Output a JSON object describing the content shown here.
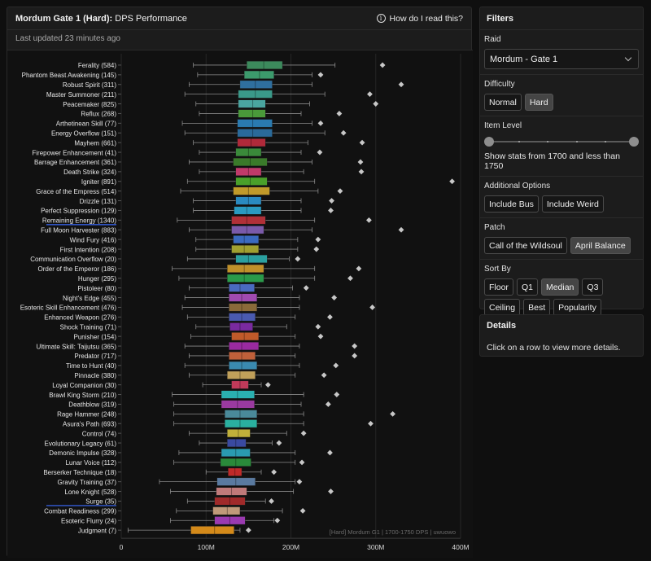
{
  "header": {
    "title_bold": "Mordum Gate 1 (Hard):",
    "title_rest": " DPS Performance",
    "help_label": "How do I read this?",
    "help_icon": "info-icon",
    "updated": "Last updated 23 minutes ago"
  },
  "filters": {
    "title": "Filters",
    "raid": {
      "label": "Raid",
      "value": "Mordum - Gate 1"
    },
    "difficulty": {
      "label": "Difficulty",
      "options": [
        {
          "label": "Normal",
          "active": false
        },
        {
          "label": "Hard",
          "active": true
        }
      ]
    },
    "item_level": {
      "label": "Item Level",
      "text": "Show stats from 1700 and less than 1750",
      "range": [
        0.0,
        1.0
      ]
    },
    "additional": {
      "label": "Additional Options",
      "options": [
        {
          "label": "Include Bus",
          "active": false
        },
        {
          "label": "Include Weird",
          "active": false
        }
      ]
    },
    "patch": {
      "label": "Patch",
      "options": [
        {
          "label": "Call of the Wildsoul",
          "active": false
        },
        {
          "label": "April Balance",
          "active": true
        }
      ]
    },
    "sort_by": {
      "label": "Sort By",
      "options": [
        {
          "label": "Floor",
          "active": false
        },
        {
          "label": "Q1",
          "active": false
        },
        {
          "label": "Median",
          "active": true
        },
        {
          "label": "Q3",
          "active": false
        },
        {
          "label": "Ceiling",
          "active": false
        },
        {
          "label": "Best",
          "active": false
        },
        {
          "label": "Popularity",
          "active": false
        }
      ]
    }
  },
  "details": {
    "title": "Details",
    "body": "Click on a row to view more details."
  },
  "chart_data": {
    "type": "boxplot",
    "title": "Mordum Gate 1 (Hard): DPS Performance",
    "watermark": "[Hard] Mordum G1 | 1700-1750 DPS | uwuowo",
    "xlim": [
      0,
      400
    ],
    "x_unit_scale": "M",
    "x_ticks": [
      "0",
      "100M",
      "200M",
      "300M",
      "400M"
    ],
    "x_tick_values": [
      0,
      100,
      200,
      300,
      400
    ],
    "grid": true,
    "underlined_rows": [
      "Remaining Energy (1340)",
      "Surge (35)"
    ],
    "rows": [
      {
        "label": "Ferality (584)",
        "min": 85,
        "q1": 148,
        "median": 168,
        "q3": 190,
        "max": 252,
        "outlier": 308,
        "color": "#3c8a5c"
      },
      {
        "label": "Phantom Beast Awakening (145)",
        "min": 90,
        "q1": 145,
        "median": 163,
        "q3": 180,
        "max": 225,
        "outlier": 235,
        "color": "#3c9a6c"
      },
      {
        "label": "Robust Spirit (311)",
        "min": 80,
        "q1": 140,
        "median": 158,
        "q3": 178,
        "max": 225,
        "outlier": 330,
        "color": "#2f6f9f"
      },
      {
        "label": "Master Summoner (211)",
        "min": 75,
        "q1": 138,
        "median": 158,
        "q3": 178,
        "max": 240,
        "outlier": 293,
        "color": "#3a9a8a"
      },
      {
        "label": "Peacemaker (825)",
        "min": 88,
        "q1": 138,
        "median": 155,
        "q3": 170,
        "max": 222,
        "outlier": 300,
        "color": "#4aa5a0"
      },
      {
        "label": "Reflux (268)",
        "min": 92,
        "q1": 138,
        "median": 155,
        "q3": 170,
        "max": 212,
        "outlier": 257,
        "color": "#4a9a3a"
      },
      {
        "label": "Arthetinean Skill (77)",
        "min": 72,
        "q1": 137,
        "median": 155,
        "q3": 178,
        "max": 225,
        "outlier": 235,
        "color": "#2a7ab0"
      },
      {
        "label": "Energy Overflow (151)",
        "min": 75,
        "q1": 137,
        "median": 155,
        "q3": 178,
        "max": 240,
        "outlier": 262,
        "color": "#2a6a9a"
      },
      {
        "label": "Mayhem (661)",
        "min": 85,
        "q1": 137,
        "median": 153,
        "q3": 170,
        "max": 220,
        "outlier": 284,
        "color": "#b02a3a"
      },
      {
        "label": "Firepower Enhancement (41)",
        "min": 92,
        "q1": 135,
        "median": 150,
        "q3": 165,
        "max": 212,
        "outlier": 234,
        "color": "#3a8a3a"
      },
      {
        "label": "Barrage Enhancement (361)",
        "min": 80,
        "q1": 132,
        "median": 152,
        "q3": 172,
        "max": 225,
        "outlier": 282,
        "color": "#3a7a2a"
      },
      {
        "label": "Death Strike (324)",
        "min": 92,
        "q1": 135,
        "median": 150,
        "q3": 165,
        "max": 215,
        "outlier": 283,
        "color": "#c03a6a"
      },
      {
        "label": "Igniter (891)",
        "min": 78,
        "q1": 135,
        "median": 152,
        "q3": 172,
        "max": 228,
        "outlier": 390,
        "color": "#4aa02a"
      },
      {
        "label": "Grace of the Empress (514)",
        "min": 70,
        "q1": 132,
        "median": 150,
        "q3": 175,
        "max": 232,
        "outlier": 258,
        "color": "#c09a2a"
      },
      {
        "label": "Drizzle (131)",
        "min": 85,
        "q1": 135,
        "median": 150,
        "q3": 165,
        "max": 212,
        "outlier": 248,
        "color": "#2a8ac0"
      },
      {
        "label": "Perfect Suppression (129)",
        "min": 85,
        "q1": 133,
        "median": 148,
        "q3": 165,
        "max": 212,
        "outlier": 247,
        "color": "#2a9ac0"
      },
      {
        "label": "Remaining Energy (1340)",
        "min": 66,
        "q1": 130,
        "median": 148,
        "q3": 170,
        "max": 228,
        "outlier": 292,
        "color": "#b03038"
      },
      {
        "label": "Full Moon Harvester (883)",
        "min": 80,
        "q1": 130,
        "median": 148,
        "q3": 168,
        "max": 225,
        "outlier": 330,
        "color": "#7a5aaa"
      },
      {
        "label": "Wind Fury (416)",
        "min": 88,
        "q1": 132,
        "median": 145,
        "q3": 162,
        "max": 208,
        "outlier": 232,
        "color": "#3a6ac0"
      },
      {
        "label": "First Intention (208)",
        "min": 88,
        "q1": 130,
        "median": 145,
        "q3": 162,
        "max": 208,
        "outlier": 230,
        "color": "#a0a030"
      },
      {
        "label": "Communication Overflow (20)",
        "min": 78,
        "q1": 135,
        "median": 150,
        "q3": 172,
        "max": 198,
        "outlier": 208,
        "color": "#2aa0a0"
      },
      {
        "label": "Order of the Emperor (186)",
        "min": 60,
        "q1": 125,
        "median": 145,
        "q3": 168,
        "max": 228,
        "outlier": 280,
        "color": "#c0902a"
      },
      {
        "label": "Hunger (295)",
        "min": 68,
        "q1": 125,
        "median": 145,
        "q3": 168,
        "max": 228,
        "outlier": 270,
        "color": "#2a9a4a"
      },
      {
        "label": "Pistoleer (80)",
        "min": 80,
        "q1": 127,
        "median": 140,
        "q3": 157,
        "max": 202,
        "outlier": 218,
        "color": "#4a6ac0"
      },
      {
        "label": "Night's Edge (455)",
        "min": 75,
        "q1": 127,
        "median": 142,
        "q3": 160,
        "max": 210,
        "outlier": 251,
        "color": "#a04ab0"
      },
      {
        "label": "Esoteric Skill Enhancement (476)",
        "min": 72,
        "q1": 127,
        "median": 142,
        "q3": 160,
        "max": 210,
        "outlier": 296,
        "color": "#8a6a3a"
      },
      {
        "label": "Enhanced Weapon (276)",
        "min": 78,
        "q1": 127,
        "median": 142,
        "q3": 158,
        "max": 205,
        "outlier": 246,
        "color": "#4a5ab0"
      },
      {
        "label": "Shock Training (71)",
        "min": 88,
        "q1": 128,
        "median": 140,
        "q3": 155,
        "max": 195,
        "outlier": 232,
        "color": "#7a2aa0"
      },
      {
        "label": "Punisher (154)",
        "min": 82,
        "q1": 130,
        "median": 145,
        "q3": 162,
        "max": 205,
        "outlier": 235,
        "color": "#c05a2a"
      },
      {
        "label": "Ultimate Skill: Taijutsu (365)",
        "min": 75,
        "q1": 127,
        "median": 142,
        "q3": 162,
        "max": 210,
        "outlier": 275,
        "color": "#9a2aa0"
      },
      {
        "label": "Predator (717)",
        "min": 80,
        "q1": 127,
        "median": 142,
        "q3": 158,
        "max": 205,
        "outlier": 275,
        "color": "#c0603a"
      },
      {
        "label": "Time to Hunt (40)",
        "min": 75,
        "q1": 127,
        "median": 142,
        "q3": 160,
        "max": 210,
        "outlier": 253,
        "color": "#3a8ab0"
      },
      {
        "label": "Pinnacle (380)",
        "min": 80,
        "q1": 125,
        "median": 140,
        "q3": 158,
        "max": 205,
        "outlier": 239,
        "color": "#c0a05a"
      },
      {
        "label": "Loyal Companion (30)",
        "min": 96,
        "q1": 130,
        "median": 140,
        "q3": 150,
        "max": 165,
        "outlier": 173,
        "color": "#c03a5a"
      },
      {
        "label": "Brawl King Storm (210)",
        "min": 60,
        "q1": 118,
        "median": 137,
        "q3": 157,
        "max": 215,
        "outlier": 254,
        "color": "#2ab0b0"
      },
      {
        "label": "Deathblow (319)",
        "min": 62,
        "q1": 118,
        "median": 137,
        "q3": 157,
        "max": 212,
        "outlier": 244,
        "color": "#9a3aa0"
      },
      {
        "label": "Rage Hammer (248)",
        "min": 62,
        "q1": 122,
        "median": 140,
        "q3": 160,
        "max": 215,
        "outlier": 320,
        "color": "#4a8a9a"
      },
      {
        "label": "Asura's Path (693)",
        "min": 62,
        "q1": 122,
        "median": 140,
        "q3": 160,
        "max": 215,
        "outlier": 294,
        "color": "#2ab0a0"
      },
      {
        "label": "Control (74)",
        "min": 80,
        "q1": 125,
        "median": 138,
        "q3": 152,
        "max": 195,
        "outlier": 215,
        "color": "#c0b03a"
      },
      {
        "label": "Evolutionary Legacy (61)",
        "min": 92,
        "q1": 125,
        "median": 135,
        "q3": 147,
        "max": 178,
        "outlier": 186,
        "color": "#3a4aa0"
      },
      {
        "label": "Demonic Impulse (328)",
        "min": 68,
        "q1": 118,
        "median": 135,
        "q3": 152,
        "max": 205,
        "outlier": 246,
        "color": "#2a9ab0"
      },
      {
        "label": "Lunar Voice (112)",
        "min": 62,
        "q1": 117,
        "median": 135,
        "q3": 153,
        "max": 205,
        "outlier": 213,
        "color": "#2a8a3a"
      },
      {
        "label": "Berserker Technique (18)",
        "min": 100,
        "q1": 126,
        "median": 134,
        "q3": 142,
        "max": 165,
        "outlier": 180,
        "color": "#c02a2a"
      },
      {
        "label": "Gravity Training (37)",
        "min": 45,
        "q1": 113,
        "median": 135,
        "q3": 158,
        "max": 205,
        "outlier": 210,
        "color": "#5a7aa0"
      },
      {
        "label": "Lone Knight (528)",
        "min": 58,
        "q1": 112,
        "median": 130,
        "q3": 148,
        "max": 203,
        "outlier": 247,
        "color": "#c07a7a"
      },
      {
        "label": "Surge (35)",
        "min": 78,
        "q1": 110,
        "median": 128,
        "q3": 146,
        "max": 170,
        "outlier": 177,
        "color": "#a02a2a"
      },
      {
        "label": "Combat Readiness (299)",
        "min": 65,
        "q1": 108,
        "median": 125,
        "q3": 140,
        "max": 190,
        "outlier": 214,
        "color": "#c09a7a"
      },
      {
        "label": "Esoteric Flurry (24)",
        "min": 58,
        "q1": 110,
        "median": 128,
        "q3": 146,
        "max": 180,
        "outlier": 184,
        "color": "#9a3ab0"
      },
      {
        "label": "Judgment (7)",
        "min": 8,
        "q1": 82,
        "median": 110,
        "q3": 133,
        "max": 140,
        "outlier": 150,
        "color": "#d48a1a"
      }
    ]
  }
}
